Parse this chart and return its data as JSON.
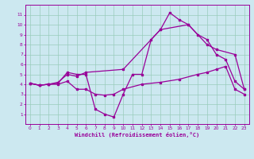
{
  "bg_color": "#cce8f0",
  "line_color": "#990099",
  "grid_color": "#99ccbb",
  "xlim": [
    -0.5,
    23.5
  ],
  "ylim": [
    0,
    12
  ],
  "xticks": [
    0,
    1,
    2,
    3,
    4,
    5,
    6,
    7,
    8,
    9,
    10,
    11,
    12,
    13,
    14,
    15,
    16,
    17,
    18,
    19,
    20,
    21,
    22,
    23
  ],
  "yticks": [
    1,
    2,
    3,
    4,
    5,
    6,
    7,
    8,
    9,
    10,
    11
  ],
  "xlabel": "Windchill (Refroidissement éolien,°C)",
  "line1_x": [
    0,
    1,
    2,
    3,
    4,
    5,
    6,
    7,
    8,
    9,
    10,
    11,
    12,
    13,
    14,
    15,
    16,
    17,
    18,
    19,
    20,
    21,
    22,
    23
  ],
  "line1_y": [
    4.1,
    3.9,
    4.0,
    4.1,
    5.2,
    5.0,
    5.0,
    1.5,
    1.0,
    0.7,
    3.0,
    5.0,
    5.0,
    8.5,
    9.5,
    11.2,
    10.5,
    10.0,
    9.0,
    8.5,
    7.0,
    6.5,
    4.3,
    3.5
  ],
  "line2_x": [
    0,
    1,
    2,
    3,
    4,
    5,
    6,
    10,
    14,
    17,
    19,
    20,
    22,
    23
  ],
  "line2_y": [
    4.1,
    3.9,
    4.0,
    4.2,
    5.0,
    4.8,
    5.2,
    5.5,
    9.5,
    10.0,
    8.0,
    7.5,
    7.0,
    3.5
  ],
  "line3_x": [
    0,
    1,
    2,
    3,
    4,
    5,
    6,
    7,
    8,
    9,
    10,
    12,
    14,
    16,
    18,
    19,
    20,
    21,
    22,
    23
  ],
  "line3_y": [
    4.1,
    3.9,
    4.0,
    4.0,
    4.3,
    3.5,
    3.5,
    3.0,
    2.9,
    3.0,
    3.5,
    4.0,
    4.2,
    4.5,
    5.0,
    5.2,
    5.5,
    5.8,
    3.5,
    3.0
  ]
}
